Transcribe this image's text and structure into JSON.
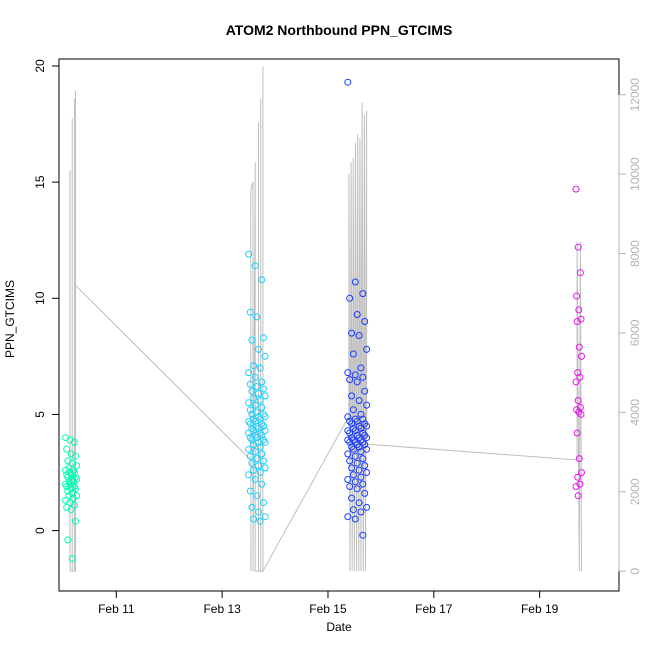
{
  "chart_data": {
    "type": "scatter",
    "title": "ATOM2 Northbound PPN_GTCIMS",
    "xlabel": "Date",
    "ylabel": "PPN_GTCIMS",
    "xlim": [
      "2024-02-09T22:00",
      "2024-02-20T12:00"
    ],
    "ylim": [
      -2.6,
      20.3
    ],
    "y2lim": [
      -500,
      12900
    ],
    "x_ticks": [
      {
        "value": "2024-02-11T00:00",
        "label": "Feb 11"
      },
      {
        "value": "2024-02-13T00:00",
        "label": "Feb 13"
      },
      {
        "value": "2024-02-15T00:00",
        "label": "Feb 15"
      },
      {
        "value": "2024-02-17T00:00",
        "label": "Feb 17"
      },
      {
        "value": "2024-02-19T00:00",
        "label": "Feb 19"
      }
    ],
    "y_ticks": [
      0,
      5,
      10,
      15,
      20
    ],
    "y2_ticks": [
      0,
      2000,
      4000,
      6000,
      8000,
      10000,
      12000
    ],
    "grid": false,
    "colors": {
      "axis": "#000000",
      "secondary_axis": "#b3b3b3",
      "secondary_line": "#bfbfbf"
    },
    "point_groups": [
      {
        "color": "#00ffb2",
        "x_range": [
          "2024-02-10T01:00",
          "2024-02-10T06:00"
        ],
        "y": [
          4.0,
          3.9,
          3.8,
          3.5,
          3.3,
          3.2,
          3.0,
          2.9,
          2.8,
          2.7,
          2.6,
          2.6,
          2.5,
          2.5,
          2.4,
          2.4,
          2.3,
          2.3,
          2.2,
          2.2,
          2.1,
          2.1,
          2.0,
          2.0,
          1.9,
          1.9,
          1.8,
          1.8,
          1.7,
          1.6,
          1.5,
          1.5,
          1.4,
          1.3,
          1.2,
          1.1,
          1.0,
          0.9,
          0.4,
          -0.4,
          -1.2
        ]
      },
      {
        "color": "#1ad1ff",
        "x_range": [
          "2024-02-13T12:00",
          "2024-02-13T19:30"
        ],
        "y": [
          11.9,
          11.4,
          10.8,
          9.4,
          9.2,
          8.3,
          8.2,
          7.8,
          7.5,
          7.1,
          7.0,
          6.8,
          6.6,
          6.4,
          6.3,
          6.2,
          6.1,
          6.0,
          5.9,
          5.8,
          5.7,
          5.6,
          5.5,
          5.4,
          5.3,
          5.2,
          5.1,
          5.0,
          5.0,
          4.9,
          4.9,
          4.8,
          4.8,
          4.7,
          4.7,
          4.6,
          4.6,
          4.5,
          4.5,
          4.4,
          4.4,
          4.3,
          4.3,
          4.2,
          4.2,
          4.1,
          4.1,
          4.0,
          4.0,
          3.9,
          3.9,
          3.8,
          3.8,
          3.7,
          3.6,
          3.5,
          3.4,
          3.3,
          3.2,
          3.1,
          3.0,
          2.9,
          2.8,
          2.7,
          2.6,
          2.5,
          2.4,
          2.2,
          2.0,
          1.7,
          1.5,
          1.2,
          1.0,
          0.8,
          0.6,
          0.5,
          0.4
        ]
      },
      {
        "color": "#1a3dff",
        "x_range": [
          "2024-02-15T09:00",
          "2024-02-15T17:30"
        ],
        "y": [
          19.3,
          10.7,
          10.2,
          10.0,
          9.3,
          9.0,
          8.5,
          8.4,
          7.8,
          7.6,
          7.0,
          6.8,
          6.7,
          6.6,
          6.5,
          6.4,
          6.0,
          5.8,
          5.6,
          5.4,
          5.2,
          5.0,
          4.9,
          4.8,
          4.8,
          4.7,
          4.7,
          4.6,
          4.6,
          4.5,
          4.5,
          4.4,
          4.4,
          4.3,
          4.3,
          4.2,
          4.2,
          4.1,
          4.1,
          4.0,
          4.0,
          4.0,
          3.9,
          3.9,
          3.9,
          3.8,
          3.8,
          3.8,
          3.7,
          3.7,
          3.6,
          3.6,
          3.5,
          3.5,
          3.4,
          3.3,
          3.2,
          3.1,
          3.0,
          2.9,
          2.8,
          2.7,
          2.6,
          2.5,
          2.4,
          2.3,
          2.2,
          2.1,
          2.0,
          1.9,
          1.8,
          1.6,
          1.4,
          1.2,
          1.0,
          0.9,
          0.8,
          0.6,
          0.5,
          -0.2
        ]
      },
      {
        "color": "#e619e6",
        "x_range": [
          "2024-02-19T16:30",
          "2024-02-19T19:00"
        ],
        "y": [
          14.7,
          12.2,
          11.1,
          10.1,
          9.5,
          9.1,
          9.0,
          7.9,
          7.5,
          6.8,
          6.6,
          6.4,
          5.6,
          5.3,
          5.2,
          5.1,
          5.0,
          4.2,
          3.1,
          2.5,
          2.3,
          2.0,
          1.9,
          1.5
        ]
      }
    ],
    "secondary_series": {
      "name": "",
      "axis": "right",
      "values_raw": [
        [
          "2024-02-10T03:00",
          0
        ],
        [
          "2024-02-10T03:00",
          10100
        ],
        [
          "2024-02-10T03:00",
          0
        ],
        [
          "2024-02-10T04:00",
          0
        ],
        [
          "2024-02-10T04:00",
          11400
        ],
        [
          "2024-02-10T04:00",
          0
        ],
        [
          "2024-02-10T05:00",
          0
        ],
        [
          "2024-02-10T05:00",
          11900
        ],
        [
          "2024-02-10T05:00",
          0
        ],
        [
          "2024-02-10T05:30",
          0
        ],
        [
          "2024-02-10T05:30",
          12100
        ],
        [
          "2024-02-10T05:30",
          7200
        ],
        [
          "2024-02-13T13:00",
          2800
        ],
        [
          "2024-02-13T13:00",
          0
        ],
        [
          "2024-02-13T13:00",
          9600
        ],
        [
          "2024-02-13T14:00",
          9800
        ],
        [
          "2024-02-13T14:00",
          0
        ],
        [
          "2024-02-13T15:00",
          10100
        ],
        [
          "2024-02-13T15:00",
          10300
        ],
        [
          "2024-02-13T15:00",
          0
        ],
        [
          "2024-02-13T16:30",
          0
        ],
        [
          "2024-02-13T16:30",
          11300
        ],
        [
          "2024-02-13T16:30",
          0
        ],
        [
          "2024-02-13T17:30",
          0
        ],
        [
          "2024-02-13T17:30",
          11900
        ],
        [
          "2024-02-13T17:30",
          0
        ],
        [
          "2024-02-13T18:30",
          0
        ],
        [
          "2024-02-13T18:30",
          12700
        ],
        [
          "2024-02-13T18:30",
          0
        ],
        [
          "2024-02-15T09:30",
          3900
        ],
        [
          "2024-02-15T09:30",
          10000
        ],
        [
          "2024-02-15T10:00",
          0
        ],
        [
          "2024-02-15T10:30",
          10300
        ],
        [
          "2024-02-15T11:00",
          0
        ],
        [
          "2024-02-15T11:30",
          10400
        ],
        [
          "2024-02-15T12:00",
          0
        ],
        [
          "2024-02-15T12:30",
          10800
        ],
        [
          "2024-02-15T13:00",
          0
        ],
        [
          "2024-02-15T13:30",
          11000
        ],
        [
          "2024-02-15T14:00",
          0
        ],
        [
          "2024-02-15T14:30",
          10900
        ],
        [
          "2024-02-15T15:00",
          0
        ],
        [
          "2024-02-15T15:30",
          11800
        ],
        [
          "2024-02-15T16:00",
          0
        ],
        [
          "2024-02-15T16:30",
          11500
        ],
        [
          "2024-02-15T17:00",
          0
        ],
        [
          "2024-02-15T17:30",
          11600
        ],
        [
          "2024-02-15T17:30",
          3200
        ],
        [
          "2024-02-19T17:00",
          2800
        ],
        [
          "2024-02-19T17:00",
          8300
        ],
        [
          "2024-02-19T18:00",
          0
        ],
        [
          "2024-02-19T18:30",
          8300
        ],
        [
          "2024-02-19T19:00",
          0
        ]
      ]
    }
  }
}
